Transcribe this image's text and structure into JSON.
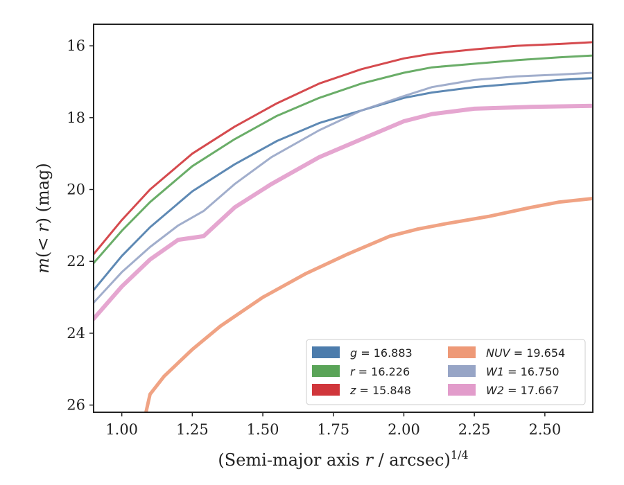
{
  "chart_data": {
    "type": "line",
    "xlabel": "(Semi-major axis r / arcsec)",
    "xlabel_parts": [
      "(Semi-major axis ",
      "r",
      " / arcsec)",
      "1/4"
    ],
    "ylabel_parts": [
      "m",
      "(< ",
      "r",
      ") (mag)"
    ],
    "xlim": [
      0.9,
      2.67
    ],
    "ylim": [
      26.2,
      15.4
    ],
    "y_inverted": true,
    "xticks": [
      1.0,
      1.25,
      1.5,
      1.75,
      2.0,
      2.25,
      2.5
    ],
    "xtick_labels": [
      "1.00",
      "1.25",
      "1.50",
      "1.75",
      "2.00",
      "2.25",
      "2.50"
    ],
    "yticks": [
      16,
      18,
      20,
      22,
      24,
      26
    ],
    "ytick_labels": [
      "16",
      "18",
      "20",
      "22",
      "24",
      "26"
    ],
    "grid": false,
    "legend_placement": "lower-right",
    "legend": [
      {
        "band": "g",
        "value": "16.883",
        "color": "#4c7cac"
      },
      {
        "band": "r",
        "value": "16.226",
        "color": "#5aa458"
      },
      {
        "band": "z",
        "value": "15.848",
        "color": "#d0363b"
      },
      {
        "band": "NUV",
        "value": "19.654",
        "color": "#ee9977"
      },
      {
        "band": "W1",
        "value": "16.750",
        "color": "#97a5c6"
      },
      {
        "band": "W2",
        "value": "17.667",
        "color": "#e29ccb"
      }
    ],
    "series": [
      {
        "name": "g",
        "color": "#4c7cac",
        "width": 3,
        "x": [
          0.9,
          1.0,
          1.1,
          1.25,
          1.4,
          1.55,
          1.7,
          1.85,
          2.0,
          2.1,
          2.25,
          2.4,
          2.55,
          2.67
        ],
        "y": [
          22.8,
          21.85,
          21.05,
          20.05,
          19.3,
          18.65,
          18.15,
          17.8,
          17.45,
          17.3,
          17.15,
          17.05,
          16.95,
          16.9
        ]
      },
      {
        "name": "r",
        "color": "#5aa458",
        "width": 3,
        "x": [
          0.9,
          1.0,
          1.1,
          1.25,
          1.4,
          1.55,
          1.7,
          1.85,
          2.0,
          2.1,
          2.25,
          2.4,
          2.55,
          2.67
        ],
        "y": [
          22.05,
          21.15,
          20.35,
          19.35,
          18.6,
          17.95,
          17.45,
          17.05,
          16.75,
          16.6,
          16.5,
          16.4,
          16.32,
          16.27
        ]
      },
      {
        "name": "z",
        "color": "#d0363b",
        "width": 3,
        "x": [
          0.9,
          1.0,
          1.1,
          1.25,
          1.4,
          1.55,
          1.7,
          1.85,
          2.0,
          2.1,
          2.25,
          2.4,
          2.55,
          2.67
        ],
        "y": [
          21.8,
          20.85,
          20.0,
          19.0,
          18.25,
          17.6,
          17.05,
          16.65,
          16.35,
          16.22,
          16.1,
          16.0,
          15.95,
          15.9
        ]
      },
      {
        "name": "W1",
        "color": "#97a5c6",
        "width": 3,
        "x": [
          0.9,
          1.0,
          1.1,
          1.2,
          1.29,
          1.4,
          1.53,
          1.7,
          1.85,
          2.0,
          2.1,
          2.25,
          2.4,
          2.55,
          2.67
        ],
        "y": [
          23.15,
          22.3,
          21.6,
          21.0,
          20.6,
          19.85,
          19.1,
          18.35,
          17.8,
          17.4,
          17.15,
          16.95,
          16.85,
          16.8,
          16.75
        ]
      },
      {
        "name": "W2",
        "color": "#e29ccb",
        "width": 6,
        "x": [
          0.9,
          1.0,
          1.1,
          1.2,
          1.29,
          1.4,
          1.53,
          1.7,
          1.85,
          2.0,
          2.1,
          2.25,
          2.45,
          2.67
        ],
        "y": [
          23.6,
          22.7,
          21.95,
          21.4,
          21.3,
          20.5,
          19.85,
          19.1,
          18.6,
          18.1,
          17.9,
          17.75,
          17.7,
          17.67
        ]
      },
      {
        "name": "NUV",
        "color": "#ee9977",
        "width": 5,
        "x": [
          1.08,
          1.1,
          1.15,
          1.25,
          1.35,
          1.5,
          1.65,
          1.8,
          1.95,
          2.05,
          2.15,
          2.3,
          2.45,
          2.55,
          2.67
        ],
        "y": [
          26.4,
          25.7,
          25.2,
          24.45,
          23.8,
          23.0,
          22.35,
          21.8,
          21.3,
          21.1,
          20.95,
          20.75,
          20.5,
          20.35,
          20.25
        ]
      }
    ]
  }
}
